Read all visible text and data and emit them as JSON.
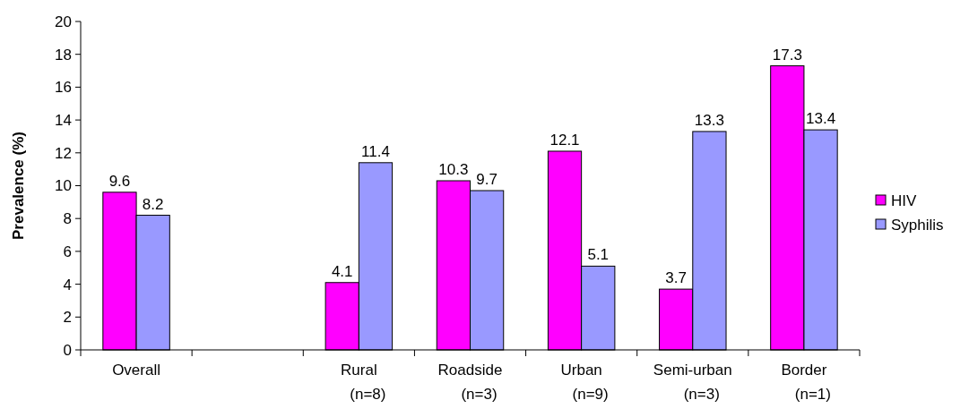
{
  "chart_data": {
    "type": "bar",
    "ylabel": "Prevalence (%)",
    "categories": [
      "Overall",
      null,
      "Rural\n(n=8)",
      "Roadside\n(n=3)",
      "Urban\n(n=9)",
      "Semi-urban\n(n=3)",
      "Border\n(n=1)"
    ],
    "series": [
      {
        "name": "HIV",
        "color": "#ff00ff",
        "values": [
          9.6,
          null,
          4.1,
          10.3,
          12.1,
          3.7,
          17.3
        ]
      },
      {
        "name": "Syphilis",
        "color": "#9999ff",
        "values": [
          8.2,
          null,
          11.4,
          9.7,
          5.1,
          13.3,
          13.4
        ]
      }
    ],
    "ylim": [
      0,
      20
    ],
    "yticks": [
      0,
      2,
      4,
      6,
      8,
      10,
      12,
      14,
      16,
      18,
      20
    ],
    "data_labels": true,
    "legend": "right",
    "grid": false
  }
}
